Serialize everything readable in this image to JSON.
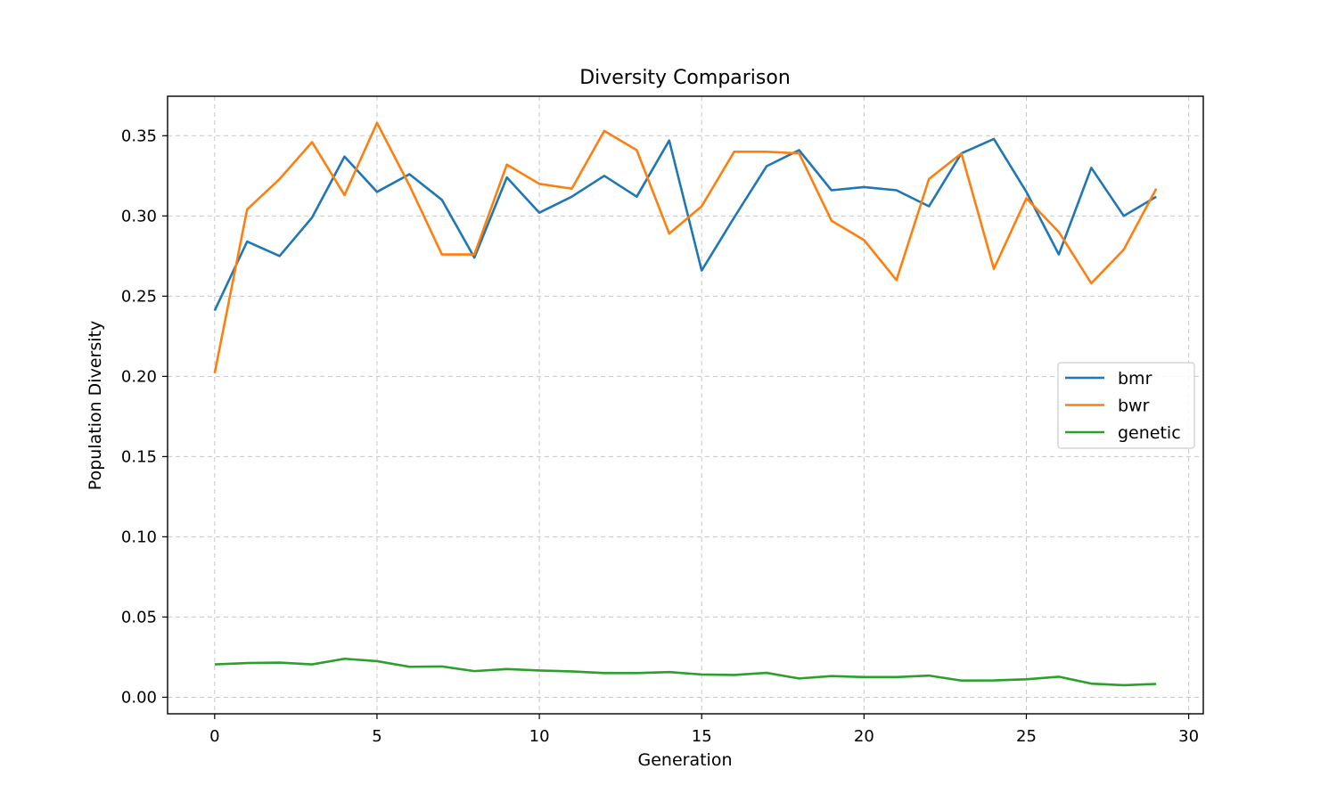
{
  "chart_data": {
    "type": "line",
    "title": "Diversity Comparison",
    "xlabel": "Generation",
    "ylabel": "Population Diversity",
    "xlim": [
      -1.45,
      30.45
    ],
    "ylim": [
      -0.0103,
      0.3746
    ],
    "xticks": [
      0,
      5,
      10,
      15,
      20,
      25,
      30
    ],
    "yticks": [
      0.0,
      0.05,
      0.1,
      0.15,
      0.2,
      0.25,
      0.3,
      0.35
    ],
    "ytick_labels": [
      "0.00",
      "0.05",
      "0.10",
      "0.15",
      "0.20",
      "0.25",
      "0.30",
      "0.35"
    ],
    "grid": true,
    "legend_position": "center-right",
    "x": [
      0,
      1,
      2,
      3,
      4,
      5,
      6,
      7,
      8,
      9,
      10,
      11,
      12,
      13,
      14,
      15,
      16,
      17,
      18,
      19,
      20,
      21,
      22,
      23,
      24,
      25,
      26,
      27,
      28,
      29
    ],
    "series": [
      {
        "name": "bmr",
        "color": "#1f77b4",
        "values": [
          0.241,
          0.284,
          0.275,
          0.299,
          0.337,
          0.315,
          0.326,
          0.31,
          0.274,
          0.324,
          0.302,
          0.312,
          0.325,
          0.312,
          0.347,
          0.266,
          0.299,
          0.331,
          0.341,
          0.316,
          0.318,
          0.316,
          0.306,
          0.339,
          0.348,
          0.315,
          0.276,
          0.33,
          0.3,
          0.312
        ]
      },
      {
        "name": "bwr",
        "color": "#ff7f0e",
        "values": [
          0.202,
          0.304,
          0.323,
          0.346,
          0.313,
          0.358,
          0.319,
          0.276,
          0.276,
          0.332,
          0.32,
          0.317,
          0.353,
          0.341,
          0.289,
          0.306,
          0.34,
          0.34,
          0.339,
          0.297,
          0.285,
          0.26,
          0.323,
          0.339,
          0.267,
          0.311,
          0.29,
          0.258,
          0.279,
          0.317
        ]
      },
      {
        "name": "genetic",
        "color": "#2ca02c",
        "values": [
          0.0205,
          0.0213,
          0.0216,
          0.0205,
          0.024,
          0.0225,
          0.019,
          0.0192,
          0.0163,
          0.0176,
          0.0167,
          0.0161,
          0.0151,
          0.0151,
          0.0157,
          0.0142,
          0.0139,
          0.0152,
          0.0117,
          0.0132,
          0.0126,
          0.0126,
          0.0135,
          0.0104,
          0.0105,
          0.0112,
          0.0128,
          0.0085,
          0.0075,
          0.0083
        ]
      }
    ]
  }
}
